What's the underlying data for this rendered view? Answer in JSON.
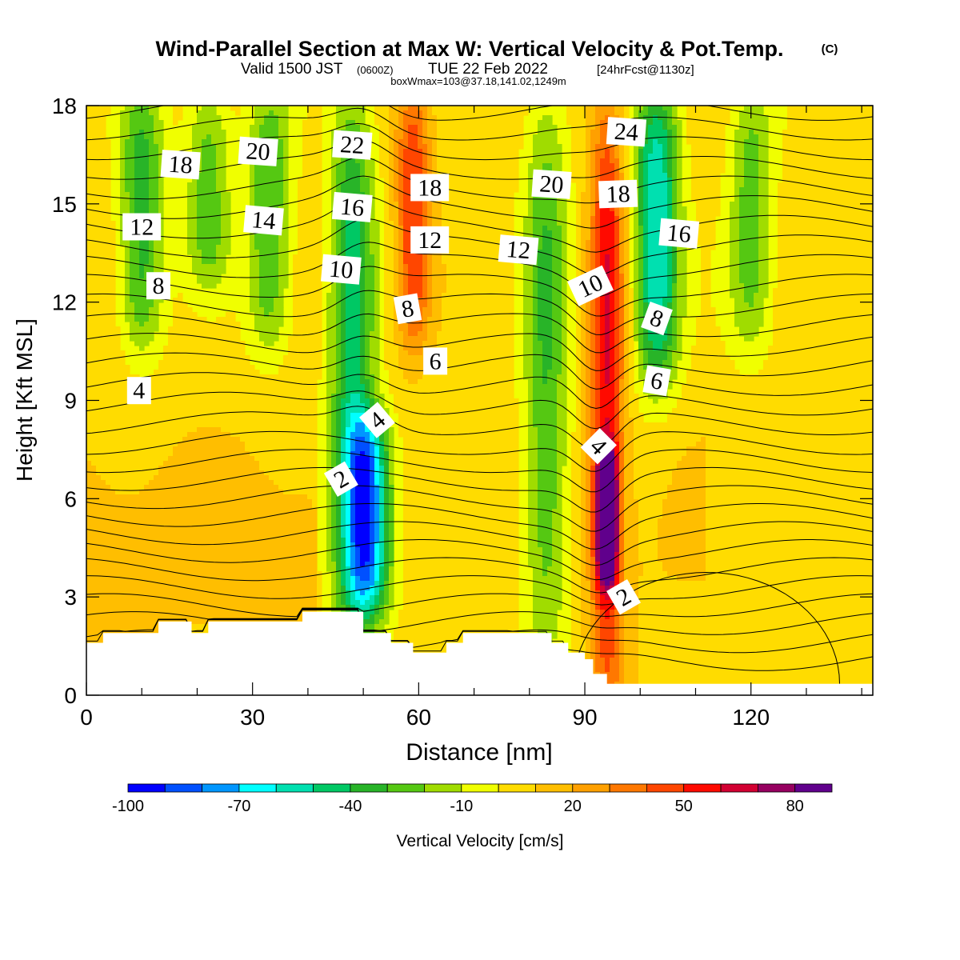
{
  "header": {
    "title": "Wind-Parallel Section at Max W: Vertical Velocity & Pot.Temp.",
    "copyright": "(C)",
    "valid_prefix": "Valid 1500 JST",
    "valid_utc": "(0600Z)",
    "valid_date": "TUE 22 Feb 2022",
    "forecast": "[24hrFcst@1130z]",
    "boxwmax": "boxWmax=103@37.18,141.02,1249m"
  },
  "colors": {
    "scale": [
      "#0000ff",
      "#0050ff",
      "#0096ff",
      "#00ffff",
      "#00e0b0",
      "#00c864",
      "#28b428",
      "#55c812",
      "#a0dc00",
      "#f0ff00",
      "#ffdc00",
      "#ffbe00",
      "#ffa000",
      "#ff7800",
      "#ff4600",
      "#ff0a00",
      "#d20032",
      "#960060",
      "#60008c"
    ],
    "contour": "#000000",
    "terrain": "#ffffff"
  },
  "chart_data": {
    "type": "heatmap",
    "xlabel": "Distance [nm]",
    "ylabel": "Height [Kft MSL]",
    "xlim": [
      0,
      142
    ],
    "ylim": [
      0,
      18
    ],
    "x_ticks": [
      0,
      30,
      60,
      90,
      120
    ],
    "y_ticks": [
      0,
      3,
      6,
      9,
      12,
      15,
      18
    ],
    "colorbar": {
      "label": "Vertical Velocity [cm/s]",
      "min": -100,
      "max": 90,
      "step": 10,
      "tick_labels": [
        -100,
        -70,
        -40,
        -10,
        20,
        50,
        80
      ]
    },
    "velocity_features": [
      {
        "x": 10,
        "z_bottom": 11,
        "z_top": 18,
        "w": -35
      },
      {
        "x": 22,
        "z_bottom": 13,
        "z_top": 18,
        "w": -25
      },
      {
        "x": 33,
        "z_bottom": 11,
        "z_top": 18,
        "w": -30
      },
      {
        "x": 48,
        "z_bottom": 2,
        "z_top": 18,
        "w": -45
      },
      {
        "x": 51,
        "z_bottom": 3,
        "z_top": 8,
        "w": -70
      },
      {
        "x": 59,
        "z_bottom": 11,
        "z_top": 18,
        "w": 50
      },
      {
        "x": 83,
        "z_bottom": 2,
        "z_top": 18,
        "w": -30
      },
      {
        "x": 94,
        "z_bottom": 0,
        "z_top": 18,
        "w": 60
      },
      {
        "x": 94,
        "z_bottom": 4,
        "z_top": 7,
        "w": 85
      },
      {
        "x": 103,
        "z_bottom": 10,
        "z_top": 18,
        "w": -60
      },
      {
        "x": 120,
        "z_bottom": 11,
        "z_top": 18,
        "w": -25
      }
    ],
    "contour_labels": [
      {
        "text": "18",
        "x": 17,
        "y": 16.2,
        "rot": 4
      },
      {
        "text": "20",
        "x": 31,
        "y": 16.6,
        "rot": 4
      },
      {
        "text": "22",
        "x": 48,
        "y": 16.8,
        "rot": 4
      },
      {
        "text": "24",
        "x": 97.5,
        "y": 17.2,
        "rot": 4
      },
      {
        "text": "18",
        "x": 62,
        "y": 15.5,
        "rot": 0
      },
      {
        "text": "20",
        "x": 84,
        "y": 15.6,
        "rot": 4
      },
      {
        "text": "18",
        "x": 96,
        "y": 15.3,
        "rot": -2
      },
      {
        "text": "12",
        "x": 10,
        "y": 14.3,
        "rot": 0
      },
      {
        "text": "14",
        "x": 32,
        "y": 14.5,
        "rot": 5
      },
      {
        "text": "16",
        "x": 48,
        "y": 14.9,
        "rot": 5
      },
      {
        "text": "16",
        "x": 107,
        "y": 14.1,
        "rot": 5
      },
      {
        "text": "12",
        "x": 62,
        "y": 13.9,
        "rot": 0
      },
      {
        "text": "12",
        "x": 78,
        "y": 13.6,
        "rot": 5
      },
      {
        "text": "10",
        "x": 46,
        "y": 13.0,
        "rot": 5
      },
      {
        "text": "10",
        "x": 91,
        "y": 12.5,
        "rot": -25
      },
      {
        "text": "8",
        "x": 13,
        "y": 12.5,
        "rot": 0
      },
      {
        "text": "8",
        "x": 58,
        "y": 11.8,
        "rot": -10
      },
      {
        "text": "8",
        "x": 103,
        "y": 11.5,
        "rot": 20
      },
      {
        "text": "6",
        "x": 63,
        "y": 10.2,
        "rot": 0
      },
      {
        "text": "6",
        "x": 103,
        "y": 9.6,
        "rot": 10
      },
      {
        "text": "4",
        "x": 9.5,
        "y": 9.3,
        "rot": 0
      },
      {
        "text": "4",
        "x": 52.5,
        "y": 8.4,
        "rot": -40
      },
      {
        "text": "4",
        "x": 92.5,
        "y": 7.6,
        "rot": 45
      },
      {
        "text": "2",
        "x": 46,
        "y": 6.6,
        "rot": -30
      },
      {
        "text": "2",
        "x": 97,
        "y": 3.0,
        "rot": -30
      }
    ],
    "terrain_profile": [
      [
        0,
        1.6
      ],
      [
        3,
        1.6
      ],
      [
        3,
        1.9
      ],
      [
        13,
        1.9
      ],
      [
        13,
        2.25
      ],
      [
        19,
        2.25
      ],
      [
        19,
        1.9
      ],
      [
        22,
        1.9
      ],
      [
        22,
        2.25
      ],
      [
        39,
        2.25
      ],
      [
        39,
        2.55
      ],
      [
        50,
        2.55
      ],
      [
        50,
        1.9
      ],
      [
        55,
        1.9
      ],
      [
        55,
        1.6
      ],
      [
        59,
        1.6
      ],
      [
        59,
        1.3
      ],
      [
        65,
        1.3
      ],
      [
        65,
        1.6
      ],
      [
        68,
        1.6
      ],
      [
        68,
        1.9
      ],
      [
        84,
        1.9
      ],
      [
        84,
        1.6
      ],
      [
        87,
        1.6
      ],
      [
        87,
        1.3
      ],
      [
        90,
        1.3
      ],
      [
        90,
        1.1
      ],
      [
        91.5,
        1.1
      ],
      [
        91.5,
        0.65
      ],
      [
        94,
        0.65
      ],
      [
        94,
        0.35
      ],
      [
        142,
        0.35
      ]
    ]
  }
}
